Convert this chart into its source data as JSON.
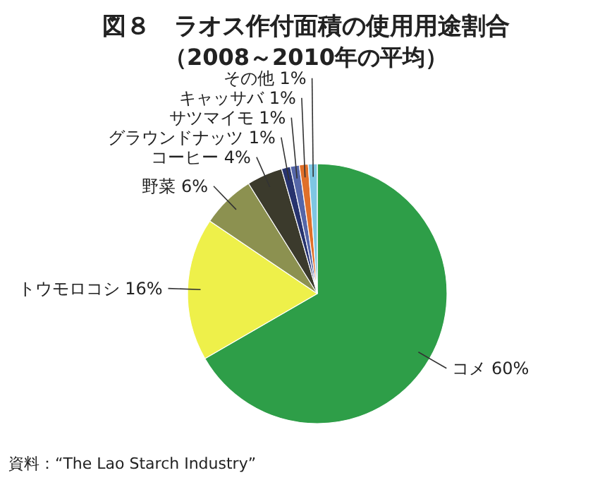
{
  "chart_data": {
    "type": "pie",
    "title": "図８　ラオス作付面積の使用用途割合",
    "subtitle": "（2008～2010年の平均）",
    "categories": [
      "コメ",
      "トウモロコシ",
      "野菜",
      "コーヒー",
      "グラウンドナッツ",
      "サツマイモ",
      "キャッサバ",
      "その他"
    ],
    "values": [
      60,
      16,
      6,
      4,
      1,
      1,
      1,
      1
    ],
    "value_labels": [
      "60%",
      "16%",
      "6%",
      "4%",
      "1%",
      "1%",
      "1%",
      "1%"
    ],
    "colors": [
      "#2e9e48",
      "#eef04a",
      "#8c9150",
      "#3b3a2c",
      "#27336e",
      "#5566a8",
      "#e0702a",
      "#7ec6e2"
    ],
    "annotations": [
      "資料：“The Lao Starch Industry”"
    ]
  }
}
